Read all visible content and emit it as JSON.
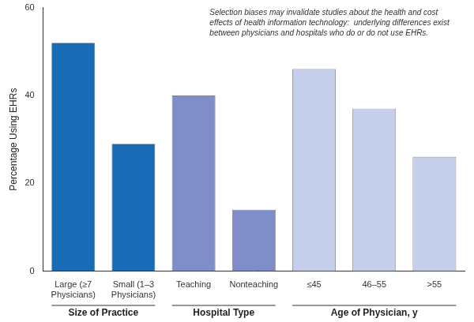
{
  "chart_data": {
    "type": "bar",
    "categories": [
      "Large (≥7\nPhysicians)",
      "Small (1–3\nPhysicians)",
      "Teaching",
      "Nonteaching",
      "≤45",
      "46–55",
      ">55"
    ],
    "groups": [
      "Size of Practice",
      "Size of Practice",
      "Hospital Type",
      "Hospital Type",
      "Age of Physician, y",
      "Age of Physician, y",
      "Age of Physician, y"
    ],
    "values": [
      52,
      29,
      40,
      14,
      46,
      37,
      26
    ],
    "colors": [
      "#1A6BB5",
      "#1A6BB5",
      "#7F8EC9",
      "#7F8EC9",
      "#C5CEEA",
      "#C5CEEA",
      "#C5CEEA"
    ],
    "ylabel": "Percentage Using EHRs",
    "ylim": [
      0,
      60
    ],
    "yticks": [
      0,
      20,
      40,
      60
    ],
    "annotation": "Selection biases may invalidate studies about the health and cost\neffects of health information technology:  underlying differences exist\nbetween physicians and hospitals who do or do not use EHRs.",
    "grid": false
  }
}
